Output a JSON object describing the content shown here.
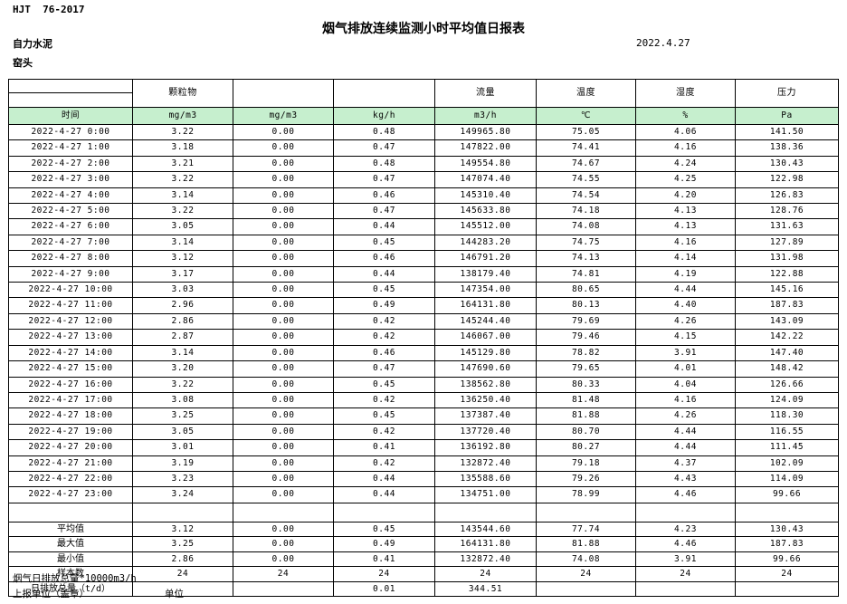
{
  "page": {
    "doc_code": "HJT  76-2017",
    "title": "烟气排放连续监测小时平均值日报表",
    "company": "自力水泥",
    "unit_name": "窑头",
    "date": "2022.4.27"
  },
  "table": {
    "header_fill": "#c6efce",
    "group_headers": [
      "",
      "颗粒物",
      "",
      "",
      "流量",
      "温度",
      "湿度",
      "压力"
    ],
    "unit_row": [
      "时间",
      "mg/m3",
      "mg/m3",
      "kg/h",
      "m3/h",
      "℃",
      "%",
      "Pa"
    ],
    "rows": [
      [
        "2022-4-27 0:00",
        "3.22",
        "0.00",
        "0.48",
        "149965.80",
        "75.05",
        "4.06",
        "141.50"
      ],
      [
        "2022-4-27 1:00",
        "3.18",
        "0.00",
        "0.47",
        "147822.00",
        "74.41",
        "4.16",
        "138.36"
      ],
      [
        "2022-4-27 2:00",
        "3.21",
        "0.00",
        "0.48",
        "149554.80",
        "74.67",
        "4.24",
        "130.43"
      ],
      [
        "2022-4-27 3:00",
        "3.22",
        "0.00",
        "0.47",
        "147074.40",
        "74.55",
        "4.25",
        "122.98"
      ],
      [
        "2022-4-27 4:00",
        "3.14",
        "0.00",
        "0.46",
        "145310.40",
        "74.54",
        "4.20",
        "126.83"
      ],
      [
        "2022-4-27 5:00",
        "3.22",
        "0.00",
        "0.47",
        "145633.80",
        "74.18",
        "4.13",
        "128.76"
      ],
      [
        "2022-4-27 6:00",
        "3.05",
        "0.00",
        "0.44",
        "145512.00",
        "74.08",
        "4.13",
        "131.63"
      ],
      [
        "2022-4-27 7:00",
        "3.14",
        "0.00",
        "0.45",
        "144283.20",
        "74.75",
        "4.16",
        "127.89"
      ],
      [
        "2022-4-27 8:00",
        "3.12",
        "0.00",
        "0.46",
        "146791.20",
        "74.13",
        "4.14",
        "131.98"
      ],
      [
        "2022-4-27 9:00",
        "3.17",
        "0.00",
        "0.44",
        "138179.40",
        "74.81",
        "4.19",
        "122.88"
      ],
      [
        "2022-4-27 10:00",
        "3.03",
        "0.00",
        "0.45",
        "147354.00",
        "80.65",
        "4.44",
        "145.16"
      ],
      [
        "2022-4-27 11:00",
        "2.96",
        "0.00",
        "0.49",
        "164131.80",
        "80.13",
        "4.40",
        "187.83"
      ],
      [
        "2022-4-27 12:00",
        "2.86",
        "0.00",
        "0.42",
        "145244.40",
        "79.69",
        "4.26",
        "143.09"
      ],
      [
        "2022-4-27 13:00",
        "2.87",
        "0.00",
        "0.42",
        "146067.00",
        "79.46",
        "4.15",
        "142.22"
      ],
      [
        "2022-4-27 14:00",
        "3.14",
        "0.00",
        "0.46",
        "145129.80",
        "78.82",
        "3.91",
        "147.40"
      ],
      [
        "2022-4-27 15:00",
        "3.20",
        "0.00",
        "0.47",
        "147690.60",
        "79.65",
        "4.01",
        "148.42"
      ],
      [
        "2022-4-27 16:00",
        "3.22",
        "0.00",
        "0.45",
        "138562.80",
        "80.33",
        "4.04",
        "126.66"
      ],
      [
        "2022-4-27 17:00",
        "3.08",
        "0.00",
        "0.42",
        "136250.40",
        "81.48",
        "4.16",
        "124.09"
      ],
      [
        "2022-4-27 18:00",
        "3.25",
        "0.00",
        "0.45",
        "137387.40",
        "81.88",
        "4.26",
        "118.30"
      ],
      [
        "2022-4-27 19:00",
        "3.05",
        "0.00",
        "0.42",
        "137720.40",
        "80.70",
        "4.44",
        "116.55"
      ],
      [
        "2022-4-27 20:00",
        "3.01",
        "0.00",
        "0.41",
        "136192.80",
        "80.27",
        "4.44",
        "111.45"
      ],
      [
        "2022-4-27 21:00",
        "3.19",
        "0.00",
        "0.42",
        "132872.40",
        "79.18",
        "4.37",
        "102.09"
      ],
      [
        "2022-4-27 22:00",
        "3.23",
        "0.00",
        "0.44",
        "135588.60",
        "79.26",
        "4.43",
        "114.09"
      ],
      [
        "2022-4-27 23:00",
        "3.24",
        "0.00",
        "0.44",
        "134751.00",
        "78.99",
        "4.46",
        "99.66"
      ]
    ],
    "summary": [
      {
        "label": "平均值",
        "values": [
          "3.12",
          "0.00",
          "0.45",
          "143544.60",
          "77.74",
          "4.23",
          "130.43"
        ]
      },
      {
        "label": "最大值",
        "values": [
          "3.25",
          "0.00",
          "0.49",
          "164131.80",
          "81.88",
          "4.46",
          "187.83"
        ]
      },
      {
        "label": "最小值",
        "values": [
          "2.86",
          "0.00",
          "0.41",
          "132872.40",
          "74.08",
          "3.91",
          "99.66"
        ]
      },
      {
        "label": "样本数",
        "values": [
          "24",
          "24",
          "24",
          "24",
          "24",
          "24",
          "24"
        ]
      },
      {
        "label": "日排放总量（t/d）",
        "values": [
          "",
          "",
          "0.01",
          "344.51",
          "",
          "",
          ""
        ]
      }
    ]
  },
  "footer": {
    "note": "烟气日排放总量*10000m3/h",
    "report_unit_label": "上报单位（盖章）",
    "unit_label": "单位"
  }
}
